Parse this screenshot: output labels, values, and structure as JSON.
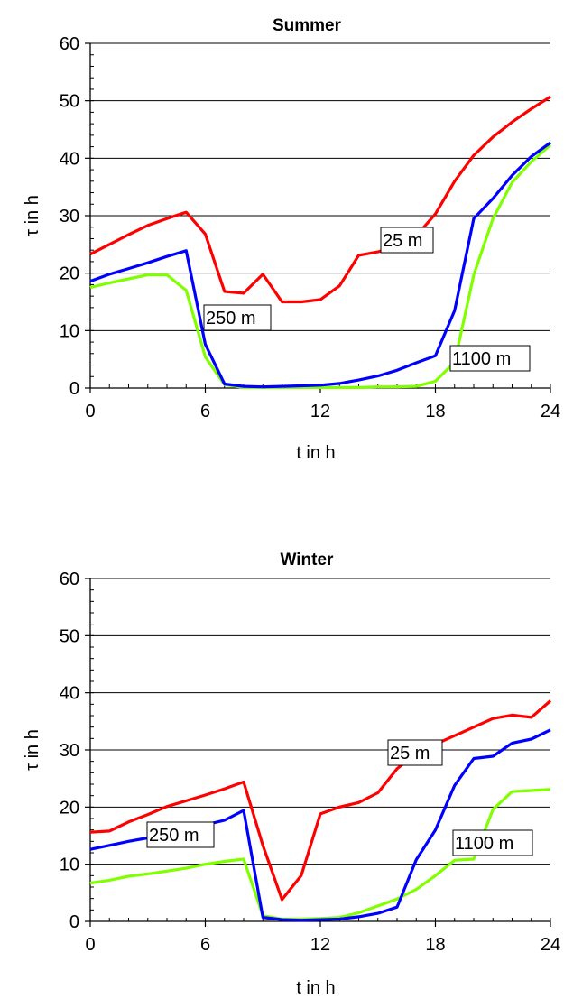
{
  "chart_data": [
    {
      "type": "line",
      "title": "Summer",
      "xlabel": "t in h",
      "ylabel": "τ in h",
      "xlim": [
        0,
        24
      ],
      "ylim": [
        0,
        60
      ],
      "xticks": [
        0,
        6,
        12,
        18,
        24
      ],
      "yticks": [
        0,
        10,
        20,
        30,
        40,
        50,
        60
      ],
      "grid": "horizontal",
      "x": [
        0,
        1,
        2,
        3,
        4,
        5,
        6,
        7,
        8,
        9,
        10,
        11,
        12,
        13,
        14,
        15,
        16,
        17,
        18,
        19,
        20,
        21,
        22,
        23,
        24
      ],
      "series": [
        {
          "name": "25 m",
          "color": "#ff0000",
          "values": [
            23.3,
            25,
            26.7,
            28.3,
            29.5,
            30.6,
            26.8,
            16.8,
            16.5,
            19.8,
            15,
            15,
            15.4,
            17.8,
            23.1,
            23.7,
            24.8,
            26.5,
            30.3,
            36,
            40.5,
            43.7,
            46.3,
            48.6,
            50.7
          ]
        },
        {
          "name": "250 m",
          "color": "#0000ff",
          "values": [
            18.6,
            19.8,
            20.8,
            21.8,
            22.9,
            23.9,
            7.6,
            0.7,
            0.3,
            0.2,
            0.3,
            0.4,
            0.5,
            0.8,
            1.4,
            2.1,
            3.1,
            4.4,
            5.6,
            13.5,
            29.5,
            33,
            37,
            40.3,
            42.7
          ]
        },
        {
          "name": "1100 m",
          "color": "#80ff00",
          "values": [
            17.5,
            18.3,
            19,
            19.7,
            19.7,
            17,
            5.4,
            0.6,
            0.1,
            0.1,
            0.1,
            0.1,
            0.1,
            0.1,
            0.1,
            0.2,
            0.2,
            0.3,
            1.2,
            4.5,
            19.7,
            29.5,
            35.8,
            39.4,
            42.3
          ]
        }
      ]
    },
    {
      "type": "line",
      "title": "Winter",
      "xlabel": "t in h",
      "ylabel": "τ in h",
      "xlim": [
        0,
        24
      ],
      "ylim": [
        0,
        60
      ],
      "xticks": [
        0,
        6,
        12,
        18,
        24
      ],
      "yticks": [
        0,
        10,
        20,
        30,
        40,
        50,
        60
      ],
      "grid": "horizontal",
      "x": [
        0,
        1,
        2,
        3,
        4,
        5,
        6,
        7,
        8,
        9,
        10,
        11,
        12,
        13,
        14,
        15,
        16,
        17,
        18,
        19,
        20,
        21,
        22,
        23,
        24
      ],
      "series": [
        {
          "name": "25 m",
          "color": "#ff0000",
          "values": [
            15.6,
            15.8,
            17.4,
            18.7,
            20.1,
            21.1,
            22.1,
            23.2,
            24.4,
            13.3,
            3.8,
            8,
            18.8,
            20,
            20.8,
            22.5,
            26.7,
            29.4,
            31,
            32.5,
            34,
            35.5,
            36.1,
            35.7,
            38.6
          ]
        },
        {
          "name": "250 m",
          "color": "#0000ff",
          "values": [
            12.6,
            13.3,
            14,
            14.6,
            15.3,
            16.1,
            16.9,
            17.7,
            19.4,
            0.7,
            0.3,
            0.2,
            0.3,
            0.4,
            0.8,
            1.4,
            2.5,
            10.8,
            16,
            23.8,
            28.5,
            28.9,
            31.2,
            31.9,
            33.5
          ]
        },
        {
          "name": "1100 m",
          "color": "#80ff00",
          "values": [
            6.7,
            7.2,
            7.9,
            8.3,
            8.8,
            9.3,
            10,
            10.5,
            10.9,
            1,
            0.4,
            0.4,
            0.5,
            0.7,
            1.5,
            2.7,
            3.9,
            5.6,
            8,
            10.7,
            10.9,
            19.6,
            22.7,
            22.9,
            23.1
          ]
        }
      ]
    }
  ]
}
